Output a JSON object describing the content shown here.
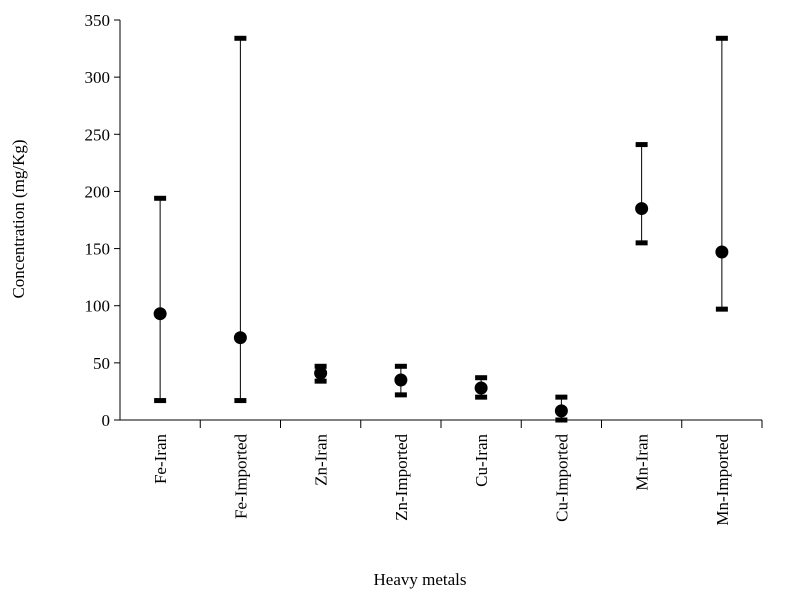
{
  "chart_data": {
    "type": "scatter",
    "title": "",
    "xlabel": "Heavy metals",
    "ylabel": "Concentration (mg/Kg)",
    "ylim": [
      0,
      350
    ],
    "yticks": [
      0,
      50,
      100,
      150,
      200,
      250,
      300,
      350
    ],
    "grid": false,
    "legend": "none",
    "categories": [
      "Fe-Iran",
      "Fe-Imported",
      "Zn-Iran",
      "Zn-Imported",
      "Cu-Iran",
      "Cu-Imported",
      "Mn-Iran",
      "Mn-Imported"
    ],
    "mean": [
      93,
      72,
      41,
      35,
      28,
      8,
      185,
      147
    ],
    "min": [
      17,
      17,
      34,
      22,
      20,
      0,
      155,
      97
    ],
    "max": [
      194,
      334,
      47,
      47,
      37,
      20,
      241,
      334
    ]
  }
}
